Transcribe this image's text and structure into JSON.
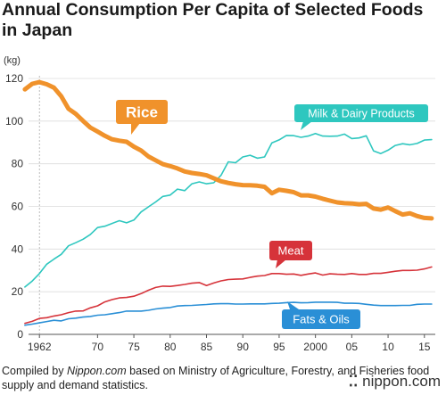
{
  "title": "Annual Consumption Per Capita of Selected Foods in Japan",
  "unit_label": "(kg)",
  "footer": {
    "prefix": "Compiled by ",
    "site": "Nippon.com",
    "suffix": " based on Ministry of Agriculture, Forestry, and Fisheries food supply and demand statistics."
  },
  "brand": {
    "mark": "⁚⁚",
    "text": "nippon.com"
  },
  "chart_data": {
    "type": "line",
    "xlim": [
      1960.5,
      2016.5
    ],
    "ylim": [
      0,
      120
    ],
    "yticks": [
      0,
      20,
      40,
      60,
      80,
      100,
      120
    ],
    "xticks": [
      {
        "value": 1962,
        "label": "1962"
      },
      {
        "value": 1970,
        "label": "70"
      },
      {
        "value": 1975,
        "label": "75"
      },
      {
        "value": 1980,
        "label": "80"
      },
      {
        "value": 1985,
        "label": "85"
      },
      {
        "value": 1990,
        "label": "90"
      },
      {
        "value": 1995,
        "label": "95"
      },
      {
        "value": 2000,
        "label": "2000"
      },
      {
        "value": 2005,
        "label": "05"
      },
      {
        "value": 2010,
        "label": "10"
      },
      {
        "value": 2015,
        "label": "15"
      }
    ],
    "grid": true,
    "marker_line_x": 1962,
    "colors": {
      "Rice": "#f0922b",
      "Milk & Dairy Products": "#2ec7bf",
      "Meat": "#d6333a",
      "Fats & Oils": "#2a8fd6"
    },
    "series": [
      {
        "name": "Rice",
        "x": [
          1960,
          1961,
          1962,
          1963,
          1964,
          1965,
          1966,
          1967,
          1968,
          1969,
          1970,
          1971,
          1972,
          1973,
          1974,
          1975,
          1976,
          1977,
          1978,
          1979,
          1980,
          1981,
          1982,
          1983,
          1984,
          1985,
          1986,
          1987,
          1988,
          1989,
          1990,
          1991,
          1992,
          1993,
          1994,
          1995,
          1996,
          1997,
          1998,
          1999,
          2000,
          2001,
          2002,
          2003,
          2004,
          2005,
          2006,
          2007,
          2008,
          2009,
          2010,
          2011,
          2012,
          2013,
          2014,
          2015,
          2016
        ],
        "values": [
          114.9,
          117.5,
          118.3,
          117.3,
          115.7,
          111.7,
          105.8,
          103.4,
          100.1,
          97.0,
          95.1,
          93.1,
          91.5,
          90.8,
          90.3,
          88.0,
          86.2,
          83.4,
          81.6,
          79.8,
          78.9,
          77.8,
          76.4,
          75.7,
          75.2,
          74.6,
          73.2,
          71.8,
          71.0,
          70.4,
          70.0,
          69.9,
          69.7,
          69.2,
          66.2,
          67.8,
          67.3,
          66.7,
          65.2,
          65.2,
          64.6,
          63.6,
          62.7,
          61.9,
          61.5,
          61.4,
          61.0,
          61.2,
          59.0,
          58.5,
          59.5,
          57.8,
          56.2,
          56.8,
          55.5,
          54.6,
          54.4
        ]
      },
      {
        "name": "Milk & Dairy Products",
        "x": [
          1960,
          1961,
          1962,
          1963,
          1964,
          1965,
          1966,
          1967,
          1968,
          1969,
          1970,
          1971,
          1972,
          1973,
          1974,
          1975,
          1976,
          1977,
          1978,
          1979,
          1980,
          1981,
          1982,
          1983,
          1984,
          1985,
          1986,
          1987,
          1988,
          1989,
          1990,
          1991,
          1992,
          1993,
          1994,
          1995,
          1996,
          1997,
          1998,
          1999,
          2000,
          2001,
          2002,
          2003,
          2004,
          2005,
          2006,
          2007,
          2008,
          2009,
          2010,
          2011,
          2012,
          2013,
          2014,
          2015,
          2016
        ],
        "values": [
          22.2,
          25.0,
          28.5,
          32.9,
          35.3,
          37.5,
          41.5,
          43.0,
          44.6,
          46.8,
          50.1,
          50.7,
          52.0,
          53.3,
          52.3,
          53.6,
          57.4,
          59.8,
          62.1,
          64.7,
          65.3,
          68.1,
          67.4,
          70.6,
          71.5,
          70.6,
          71.1,
          74.6,
          80.9,
          80.5,
          83.2,
          84.0,
          82.6,
          83.2,
          89.8,
          91.2,
          93.3,
          93.2,
          92.4,
          93.0,
          94.2,
          93.0,
          92.9,
          93.0,
          93.9,
          91.8,
          92.1,
          93.1,
          86.0,
          84.8,
          86.4,
          88.6,
          89.4,
          88.9,
          89.5,
          91.1,
          91.3
        ]
      },
      {
        "name": "Meat",
        "x": [
          1960,
          1961,
          1962,
          1963,
          1964,
          1965,
          1966,
          1967,
          1968,
          1969,
          1970,
          1971,
          1972,
          1973,
          1974,
          1975,
          1976,
          1977,
          1978,
          1979,
          1980,
          1981,
          1982,
          1983,
          1984,
          1985,
          1986,
          1987,
          1988,
          1989,
          1990,
          1991,
          1992,
          1993,
          1994,
          1995,
          1996,
          1997,
          1998,
          1999,
          2000,
          2001,
          2002,
          2003,
          2004,
          2005,
          2006,
          2007,
          2008,
          2009,
          2010,
          2011,
          2012,
          2013,
          2014,
          2015,
          2016
        ],
        "values": [
          5.2,
          6.1,
          7.5,
          7.8,
          8.6,
          9.2,
          10.2,
          10.9,
          11.0,
          12.4,
          13.4,
          15.2,
          16.3,
          17.1,
          17.3,
          17.9,
          19.1,
          20.7,
          22.0,
          22.6,
          22.5,
          22.9,
          23.4,
          24.0,
          24.3,
          22.9,
          24.1,
          25.1,
          25.7,
          25.9,
          26.0,
          26.7,
          27.3,
          27.6,
          28.5,
          28.5,
          28.2,
          28.3,
          27.7,
          28.3,
          28.8,
          27.8,
          28.4,
          28.2,
          28.1,
          28.5,
          28.1,
          28.1,
          28.6,
          28.6,
          29.1,
          29.6,
          30.0,
          30.0,
          30.1,
          30.7,
          31.6
        ]
      },
      {
        "name": "Fats & Oils",
        "x": [
          1960,
          1961,
          1962,
          1963,
          1964,
          1965,
          1966,
          1967,
          1968,
          1969,
          1970,
          1971,
          1972,
          1973,
          1974,
          1975,
          1976,
          1977,
          1978,
          1979,
          1980,
          1981,
          1982,
          1983,
          1984,
          1985,
          1986,
          1987,
          1988,
          1989,
          1990,
          1991,
          1992,
          1993,
          1994,
          1995,
          1996,
          1997,
          1998,
          1999,
          2000,
          2001,
          2002,
          2003,
          2004,
          2005,
          2006,
          2007,
          2008,
          2009,
          2010,
          2011,
          2012,
          2013,
          2014,
          2015,
          2016
        ],
        "values": [
          4.3,
          4.8,
          5.4,
          6.0,
          6.6,
          6.3,
          7.3,
          7.6,
          8.1,
          8.4,
          9.0,
          9.2,
          9.7,
          10.2,
          10.9,
          10.9,
          10.9,
          11.3,
          11.9,
          12.3,
          12.6,
          13.3,
          13.5,
          13.6,
          13.8,
          14.0,
          14.3,
          14.4,
          14.4,
          14.2,
          14.2,
          14.3,
          14.3,
          14.3,
          14.5,
          14.6,
          14.9,
          15.0,
          14.8,
          14.9,
          15.1,
          15.1,
          15.1,
          15.0,
          14.6,
          14.6,
          14.5,
          14.1,
          13.7,
          13.5,
          13.5,
          13.5,
          13.6,
          13.6,
          14.1,
          14.2,
          14.2
        ]
      }
    ],
    "series_labels": [
      {
        "series": "Rice",
        "text": "Rice"
      },
      {
        "series": "Milk & Dairy Products",
        "text": "Milk & Dairy Products"
      },
      {
        "series": "Meat",
        "text": "Meat"
      },
      {
        "series": "Fats & Oils",
        "text": "Fats & Oils"
      }
    ]
  }
}
